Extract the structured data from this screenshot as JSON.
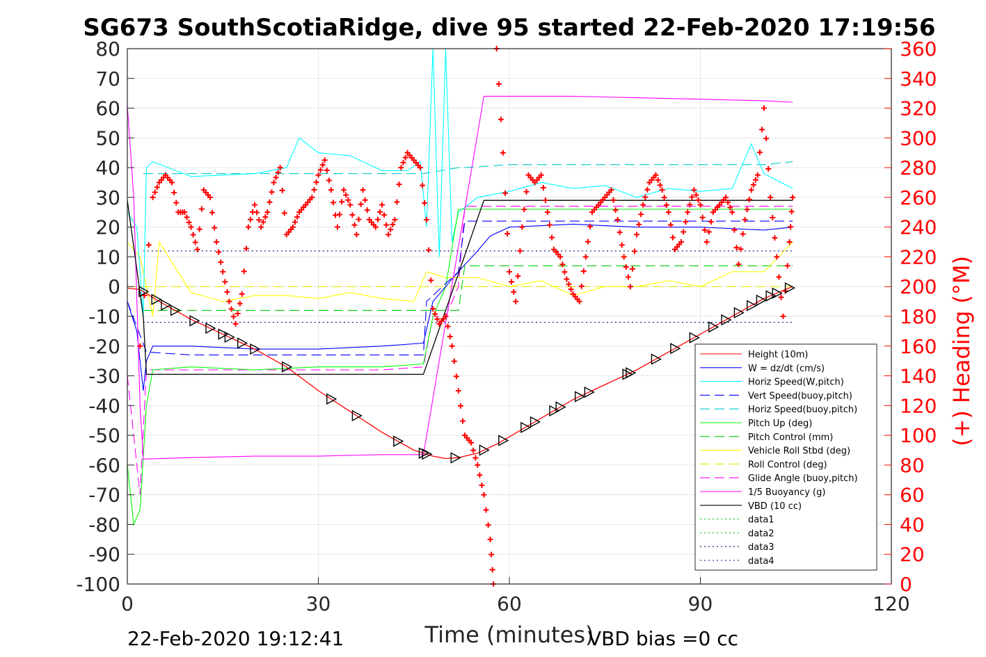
{
  "chart_data": {
    "type": "line",
    "title": "SG673 SouthScotiaRidge, dive 95 started 22-Feb-2020 17:19:56",
    "xlabel": "Time (minutes)",
    "ylabel": "",
    "ylabel_right": "(+) Heading (°M)",
    "xlim": [
      0,
      120
    ],
    "ylim": [
      -100,
      80
    ],
    "ylim_right": [
      0,
      360
    ],
    "xticks": [
      "0",
      "30",
      "60",
      "90",
      "120"
    ],
    "yticks": [
      "80",
      "70",
      "60",
      "50",
      "40",
      "30",
      "20",
      "10",
      "0",
      "-10",
      "-20",
      "-30",
      "-40",
      "-50",
      "-60",
      "-70",
      "-80",
      "-90",
      "-100"
    ],
    "yticks_right": [
      "360",
      "340",
      "320",
      "300",
      "280",
      "260",
      "240",
      "220",
      "200",
      "180",
      "160",
      "140",
      "120",
      "100",
      "80",
      "60",
      "40",
      "20",
      "0"
    ],
    "grid": true,
    "legend_position": "bottom-right",
    "colors": {
      "height": "#ff0000",
      "w": "#0000ff",
      "horiz_speed": "#00ffff",
      "vert_speed_buoy": "#0000ff",
      "horiz_speed_buoy": "#00c8c8",
      "pitch_up": "#00ff00",
      "pitch_control": "#00cc00",
      "roll": "#ffff00",
      "roll_control": "#e6e600",
      "glide_angle": "#ff00ff",
      "buoyancy": "#ff00ff",
      "vbd": "#000000",
      "heading": "#ff0000",
      "data_dotted": "#00cc00",
      "data_dotted_blue": "#00007f"
    },
    "series": [
      {
        "name": "Height (10m)",
        "key": "height",
        "style": "solid",
        "x": [
          0,
          2,
          5,
          10,
          15,
          20,
          25,
          30,
          35,
          40,
          45,
          48,
          50,
          52,
          55,
          58,
          62,
          66,
          70,
          75,
          80,
          85,
          90,
          95,
          100,
          104.5
        ],
        "y": [
          -0.5,
          -1,
          -5,
          -11,
          -16,
          -21,
          -27,
          -35,
          -42,
          -49,
          -55,
          -57,
          -57.8,
          -57.5,
          -56,
          -53,
          -48,
          -43,
          -38,
          -33,
          -28,
          -22,
          -16,
          -10,
          -4,
          0
        ]
      },
      {
        "name": "W = dz/dt (cm/s)",
        "key": "w",
        "style": "solid",
        "x": [
          0,
          1.5,
          2.5,
          3,
          4,
          10,
          20,
          30,
          40,
          46.5,
          48,
          50,
          52,
          55,
          57,
          60,
          70,
          80,
          90,
          100,
          104.5
        ],
        "y": [
          -5,
          -15,
          -35,
          -25,
          -20,
          -20,
          -21,
          -21,
          -20,
          -19,
          -5,
          0,
          5,
          12,
          17,
          20,
          21,
          20,
          20,
          19,
          20
        ]
      },
      {
        "name": "Horiz Speed(W,pitch)",
        "key": "horiz_speed",
        "style": "solid",
        "x": [
          0,
          1.5,
          2.5,
          3,
          4,
          10,
          20,
          25,
          27,
          30,
          35,
          40,
          44,
          46,
          47,
          48,
          49,
          50,
          51,
          52,
          55,
          60,
          65,
          70,
          75,
          80,
          85,
          90,
          95,
          98,
          100,
          104.5
        ],
        "y": [
          25,
          20,
          -10,
          40,
          42,
          37,
          38,
          40,
          50,
          45,
          44,
          39,
          39,
          42,
          20,
          80,
          10,
          80,
          15,
          25,
          30,
          32,
          35,
          33,
          34,
          30,
          33,
          32,
          33,
          48,
          38,
          33
        ]
      },
      {
        "name": "Vert Speed(buoy,pitch)",
        "key": "vert_speed_buoy",
        "style": "dashed",
        "x": [
          0,
          3,
          10,
          20,
          30,
          40,
          46.5,
          47,
          52,
          53,
          60,
          70,
          80,
          90,
          100,
          104.5
        ],
        "y": [
          -5,
          -22,
          -23,
          -23,
          -23,
          -23,
          -23,
          -5,
          5,
          22,
          22,
          22,
          22,
          22,
          22,
          22
        ]
      },
      {
        "name": "Horiz Speed(buoy,pitch)",
        "key": "horiz_speed_buoy",
        "style": "dashed",
        "x": [
          2.5,
          10,
          20,
          30,
          40,
          46.5,
          52,
          53,
          60,
          70,
          80,
          90,
          100,
          104.5
        ],
        "y": [
          38,
          38,
          38,
          38,
          38,
          38,
          40,
          40,
          41,
          41,
          41,
          41,
          41,
          42
        ]
      },
      {
        "name": "Pitch Up (deg)",
        "key": "pitch_up",
        "style": "solid",
        "x": [
          0,
          1,
          2,
          3,
          4,
          10,
          20,
          30,
          40,
          46.5,
          48,
          50,
          52,
          60,
          70,
          80,
          90,
          100,
          104.5
        ],
        "y": [
          -60,
          -80,
          -75,
          -40,
          -28,
          -27,
          -28,
          -27,
          -27,
          -26,
          -10,
          0,
          26,
          26,
          26,
          26,
          26,
          26,
          26
        ]
      },
      {
        "name": "Pitch Control (mm)",
        "key": "pitch_control",
        "style": "dashed",
        "x": [
          2.5,
          46.5,
          47,
          52,
          53,
          104.5
        ],
        "y": [
          -8,
          -8,
          -8,
          -8,
          7,
          7
        ]
      },
      {
        "name": "Vehicle Roll Stbd (deg)",
        "key": "roll",
        "style": "solid",
        "x": [
          0,
          2,
          4,
          5,
          10,
          15,
          20,
          25,
          30,
          35,
          40,
          45,
          47,
          50,
          55,
          60,
          65,
          70,
          75,
          80,
          85,
          90,
          95,
          100,
          104.5
        ],
        "y": [
          15,
          10,
          -10,
          15,
          -2,
          -5,
          -3,
          -3,
          -4,
          -2,
          -4,
          -5,
          5,
          3,
          3,
          0,
          2,
          -3,
          0,
          0,
          2,
          0,
          5,
          5,
          15
        ]
      },
      {
        "name": "Roll Control (deg)",
        "key": "roll_control",
        "style": "dashed",
        "x": [
          0,
          104.5
        ],
        "y": [
          0,
          0
        ]
      },
      {
        "name": "Glide Angle (buoy,pitch)",
        "key": "glide_angle",
        "style": "dashed",
        "x": [
          0,
          2,
          3,
          10,
          20,
          30,
          40,
          46.5,
          48,
          50,
          52,
          53,
          60,
          70,
          80,
          90,
          100,
          104.5
        ],
        "y": [
          -30,
          -70,
          -28,
          -28,
          -28,
          -28,
          -28,
          -27,
          -10,
          -10,
          0,
          27,
          27,
          27,
          27,
          27,
          27,
          27
        ]
      },
      {
        "name": "1/5 Buoyancy (g)",
        "key": "buoyancy",
        "style": "solid",
        "x": [
          0,
          1,
          2,
          2.5,
          10,
          20,
          30,
          40,
          46.5,
          56,
          60,
          70,
          80,
          90,
          100,
          104.5
        ],
        "y": [
          61,
          30,
          -40,
          -58,
          -57.5,
          -57,
          -57,
          -56.5,
          -56.5,
          64,
          64,
          64,
          63.5,
          63,
          62.5,
          62
        ]
      },
      {
        "name": "VBD (10 cc)",
        "key": "vbd",
        "style": "solid",
        "x": [
          0,
          2.5,
          3,
          46.5,
          56,
          104.5
        ],
        "y": [
          29,
          -10,
          -29.5,
          -29.5,
          29,
          29
        ]
      },
      {
        "name": "data1",
        "key": "data1",
        "style": "dotted",
        "x": [],
        "y": []
      },
      {
        "name": "data2",
        "key": "data2",
        "style": "dotted",
        "x": [],
        "y": []
      },
      {
        "name": "data3",
        "key": "data3",
        "style": "dotted",
        "x": [
          2.5,
          104.5
        ],
        "y": [
          12,
          12
        ]
      },
      {
        "name": "data4",
        "key": "data4",
        "style": "dotted",
        "x": [
          2.5,
          104.5
        ],
        "y": [
          -12,
          -12
        ]
      }
    ],
    "heading_series": {
      "axis": "right",
      "x": [
        2,
        4,
        5,
        6,
        7,
        8,
        9,
        10,
        11,
        12,
        13,
        14,
        15,
        16,
        17,
        18,
        19,
        20,
        21,
        22,
        23,
        24,
        25,
        26,
        27,
        28,
        29,
        30,
        31,
        32,
        33,
        34,
        35,
        36,
        37,
        38,
        39,
        40,
        41,
        42,
        43,
        44,
        45,
        46,
        47,
        48,
        49,
        50,
        51,
        52,
        53,
        54,
        55,
        56,
        57,
        57.5,
        58,
        59,
        60,
        61,
        62,
        63,
        64,
        65,
        66,
        67,
        68,
        69,
        70,
        71,
        72,
        73,
        74,
        75,
        76,
        77,
        78,
        79,
        80,
        81,
        82,
        83,
        84,
        85,
        86,
        87,
        88,
        89,
        90,
        91,
        92,
        93,
        94,
        95,
        96,
        97,
        98,
        99,
        100,
        101,
        102,
        103,
        104,
        104.5
      ],
      "y": [
        160,
        260,
        270,
        275,
        270,
        250,
        250,
        240,
        225,
        265,
        260,
        230,
        210,
        190,
        175,
        195,
        240,
        255,
        240,
        250,
        270,
        280,
        235,
        240,
        250,
        255,
        260,
        275,
        285,
        265,
        240,
        265,
        255,
        235,
        265,
        245,
        240,
        255,
        235,
        245,
        280,
        290,
        285,
        280,
        245,
        185,
        175,
        180,
        160,
        130,
        100,
        95,
        80,
        60,
        30,
        0,
        360,
        290,
        210,
        190,
        240,
        275,
        270,
        275,
        250,
        225,
        220,
        205,
        195,
        190,
        220,
        250,
        255,
        260,
        265,
        245,
        220,
        200,
        235,
        255,
        270,
        275,
        265,
        250,
        225,
        230,
        250,
        265,
        255,
        230,
        250,
        255,
        260,
        250,
        215,
        245,
        265,
        275,
        320,
        260,
        220,
        180,
        230,
        260
      ]
    },
    "footer_left": "22-Feb-2020 19:12:41",
    "footer_right": "VBD bias =0 cc"
  }
}
